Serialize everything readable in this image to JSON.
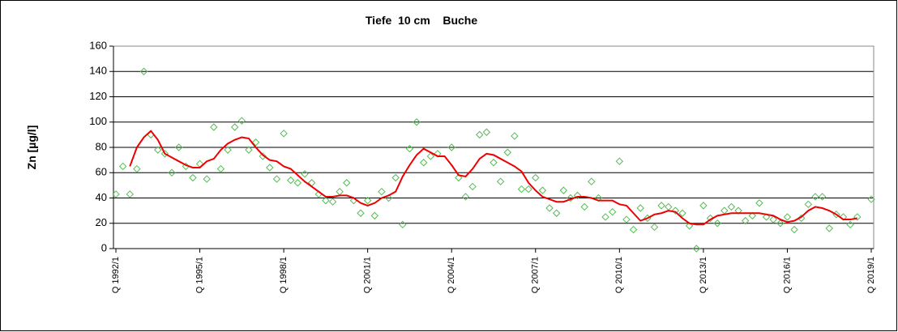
{
  "chart_data": {
    "type": "line",
    "title": "Tiefe  10 cm    Buche",
    "y_label": "Zn [µg/l]",
    "categories": [
      "Q 1992/1",
      null,
      null,
      null,
      null,
      null,
      null,
      null,
      null,
      null,
      null,
      null,
      "Q 1995/1",
      null,
      null,
      null,
      null,
      null,
      null,
      null,
      null,
      null,
      null,
      null,
      "Q 1998/1",
      null,
      null,
      null,
      null,
      null,
      null,
      null,
      null,
      null,
      null,
      null,
      "Q 2001/1",
      null,
      null,
      null,
      null,
      null,
      null,
      null,
      null,
      null,
      null,
      null,
      "Q 2004/1",
      null,
      null,
      null,
      null,
      null,
      null,
      null,
      null,
      null,
      null,
      null,
      "Q 2007/1",
      null,
      null,
      null,
      null,
      null,
      null,
      null,
      null,
      null,
      null,
      null,
      "Q 2010/1",
      null,
      null,
      null,
      null,
      null,
      null,
      null,
      null,
      null,
      null,
      null,
      "Q 2013/1",
      null,
      null,
      null,
      null,
      null,
      null,
      null,
      null,
      null,
      null,
      null,
      "Q 2016/1",
      null,
      null,
      null,
      null,
      null,
      null,
      null,
      null,
      null,
      null,
      null,
      "Q 2019/1"
    ],
    "series": [
      {
        "color": "#55bb55",
        "marker": "diamond",
        "line": false,
        "values": [
          43,
          65,
          43,
          63,
          140,
          90,
          78,
          75,
          60,
          80,
          65,
          56,
          67,
          55,
          96,
          63,
          78,
          96,
          101,
          78,
          84,
          73,
          64,
          55,
          91,
          54,
          52,
          59,
          52,
          43,
          38,
          37,
          45,
          52,
          38,
          28,
          38,
          26,
          45,
          40,
          56,
          19,
          79,
          100,
          68,
          73,
          75,
          null,
          80,
          56,
          41,
          49,
          90,
          92,
          68,
          53,
          76,
          89,
          47,
          47,
          56,
          46,
          32,
          28,
          46,
          40,
          42,
          33,
          53,
          40,
          25,
          29,
          69,
          23,
          15,
          32,
          24,
          17,
          34,
          33,
          30,
          28,
          18,
          0,
          34,
          24,
          20,
          30,
          33,
          30,
          22,
          26,
          36,
          25,
          23,
          20,
          25,
          15,
          24,
          35,
          41,
          41,
          16,
          27,
          25,
          19,
          25,
          null,
          39
        ]
      },
      {
        "color": "#ee0000",
        "marker": null,
        "line": true,
        "values": [
          null,
          null,
          65,
          80,
          88,
          93,
          86,
          75,
          72,
          69,
          66,
          64,
          64,
          69,
          71,
          78,
          83,
          86,
          88,
          87,
          80,
          74,
          70,
          69,
          65,
          63,
          58,
          53,
          49,
          45,
          41,
          41,
          42,
          42,
          40,
          36,
          34,
          36,
          40,
          42,
          45,
          57,
          66,
          74,
          79,
          76,
          73,
          73,
          66,
          58,
          57,
          63,
          71,
          75,
          74,
          71,
          68,
          65,
          61,
          52,
          46,
          41,
          39,
          37,
          37,
          39,
          41,
          41,
          40,
          38,
          38,
          38,
          35,
          34,
          28,
          22,
          24,
          27,
          28,
          30,
          29,
          24,
          20,
          19,
          19,
          23,
          26,
          27,
          28,
          28,
          28,
          28,
          28,
          27,
          26,
          23,
          21,
          22,
          25,
          30,
          33,
          32,
          30,
          27,
          23,
          23,
          24,
          null,
          null
        ]
      }
    ],
    "ylim": [
      0,
      160
    ],
    "yticks": [
      0,
      20,
      40,
      60,
      80,
      100,
      120,
      140,
      160
    ],
    "grid": true
  }
}
